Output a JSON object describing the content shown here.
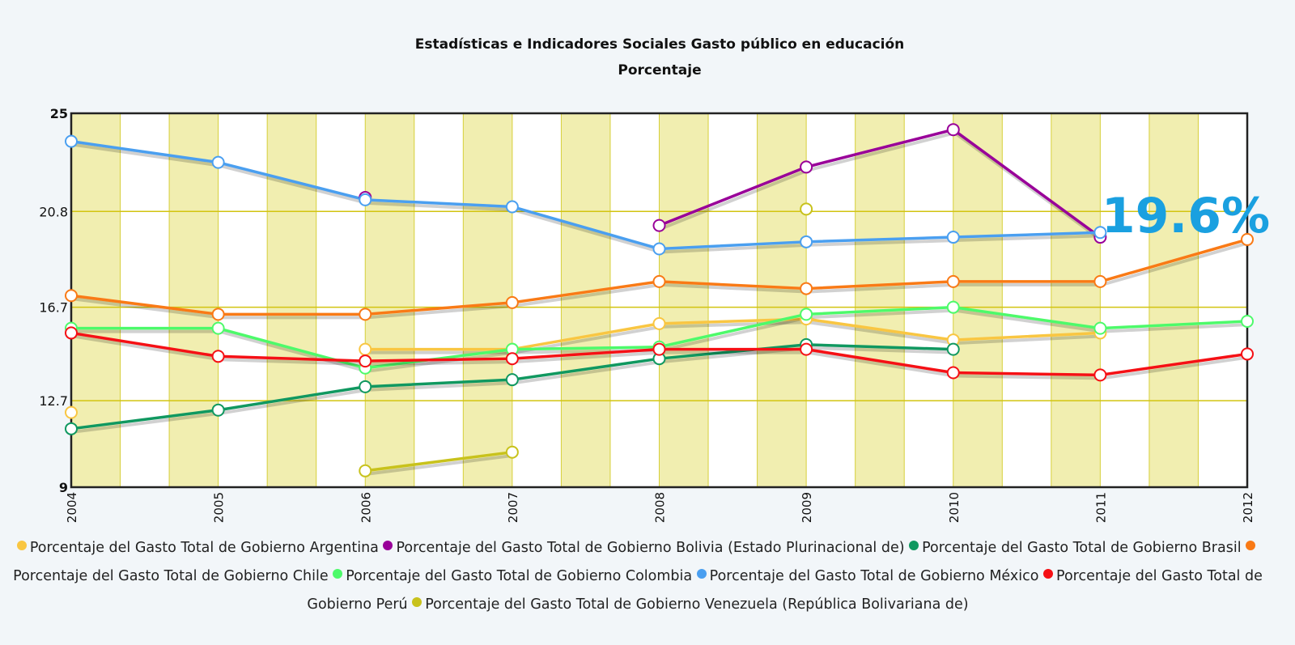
{
  "chart_data": {
    "type": "line",
    "title": "Estadísticas e Indicadores Sociales Gasto público en educación",
    "subtitle": "Porcentaje",
    "annotation": "19.6%",
    "x": [
      "2004",
      "2005",
      "2006",
      "2007",
      "2008",
      "2009",
      "2010",
      "2011",
      "2012"
    ],
    "ylim": [
      9,
      25
    ],
    "yticks": [
      9,
      12.7,
      16.7,
      20.8,
      25
    ],
    "grid": true,
    "series": [
      {
        "name": "Porcentaje del Gasto Total de Gobierno Argentina",
        "color": "#f9c642",
        "values": [
          12.2,
          null,
          14.9,
          14.9,
          16.0,
          16.2,
          15.3,
          15.6,
          null
        ]
      },
      {
        "name": "Porcentaje del Gasto Total de Gobierno Bolivia (Estado Plurinacional de)",
        "color": "#990099",
        "values": [
          null,
          null,
          21.4,
          null,
          20.2,
          22.7,
          24.3,
          19.7,
          null
        ]
      },
      {
        "name": "Porcentaje del Gasto Total de Gobierno Brasil",
        "color": "#109860",
        "values": [
          11.5,
          12.3,
          13.3,
          13.6,
          14.5,
          15.1,
          14.9,
          null,
          null
        ]
      },
      {
        "name": "Porcentaje del Gasto Total de Gobierno Chile",
        "color": "#f97a16",
        "values": [
          17.2,
          16.4,
          16.4,
          16.9,
          17.8,
          17.5,
          17.8,
          17.8,
          19.6
        ]
      },
      {
        "name": "Porcentaje del Gasto Total de Gobierno Colombia",
        "color": "#4dfa6a",
        "values": [
          15.8,
          15.8,
          14.1,
          14.9,
          15.0,
          16.4,
          16.7,
          15.8,
          16.1
        ]
      },
      {
        "name": "Porcentaje del Gasto Total de Gobierno México",
        "color": "#4a9ff0",
        "values": [
          23.8,
          22.9,
          21.3,
          21.0,
          19.2,
          19.5,
          19.7,
          19.9,
          null
        ]
      },
      {
        "name": "Porcentaje del Gasto Total de Gobierno Perú",
        "color": "#f51015",
        "values": [
          15.6,
          14.6,
          14.4,
          14.5,
          14.9,
          14.9,
          13.9,
          13.8,
          14.7
        ]
      },
      {
        "name": "Porcentaje del Gasto Total de Gobierno Venezuela (República Bolivariana de)",
        "color": "#c8c21c",
        "values": [
          null,
          null,
          9.7,
          10.5,
          null,
          20.9,
          null,
          null,
          null
        ]
      }
    ]
  }
}
